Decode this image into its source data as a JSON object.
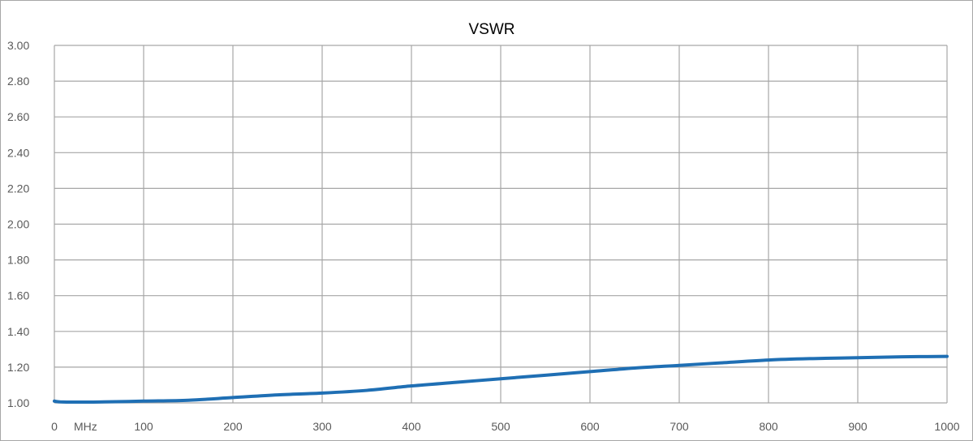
{
  "chart_data": {
    "type": "line",
    "title": "VSWR",
    "xlabel": "",
    "ylabel": "",
    "x_unit_label": "MHz",
    "xlim": [
      0,
      1000
    ],
    "ylim": [
      1.0,
      3.0
    ],
    "x_ticks": [
      0,
      100,
      200,
      300,
      400,
      500,
      600,
      700,
      800,
      900,
      1000
    ],
    "y_ticks": [
      1.0,
      1.2,
      1.4,
      1.6,
      1.8,
      2.0,
      2.2,
      2.4,
      2.6,
      2.8,
      3.0
    ],
    "x_tick_labels": [
      "0",
      "100",
      "200",
      "300",
      "400",
      "500",
      "600",
      "700",
      "800",
      "900",
      "1000"
    ],
    "y_tick_labels": [
      "1.00",
      "1.20",
      "1.40",
      "1.60",
      "1.80",
      "2.00",
      "2.20",
      "2.40",
      "2.60",
      "2.80",
      "3.00"
    ],
    "grid": true,
    "legend": "none",
    "series": [
      {
        "color": "#1f6fb4",
        "x": [
          0,
          10,
          50,
          100,
          150,
          200,
          250,
          300,
          350,
          400,
          450,
          500,
          550,
          600,
          650,
          700,
          750,
          800,
          850,
          900,
          950,
          1000
        ],
        "values": [
          1.01,
          1.005,
          1.005,
          1.01,
          1.015,
          1.03,
          1.045,
          1.055,
          1.07,
          1.095,
          1.115,
          1.135,
          1.155,
          1.175,
          1.195,
          1.21,
          1.225,
          1.24,
          1.248,
          1.253,
          1.258,
          1.26
        ]
      }
    ]
  },
  "colors": {
    "grid": "#a6a6a6",
    "axis_text": "#595959",
    "frame": "#a6a6a6"
  }
}
